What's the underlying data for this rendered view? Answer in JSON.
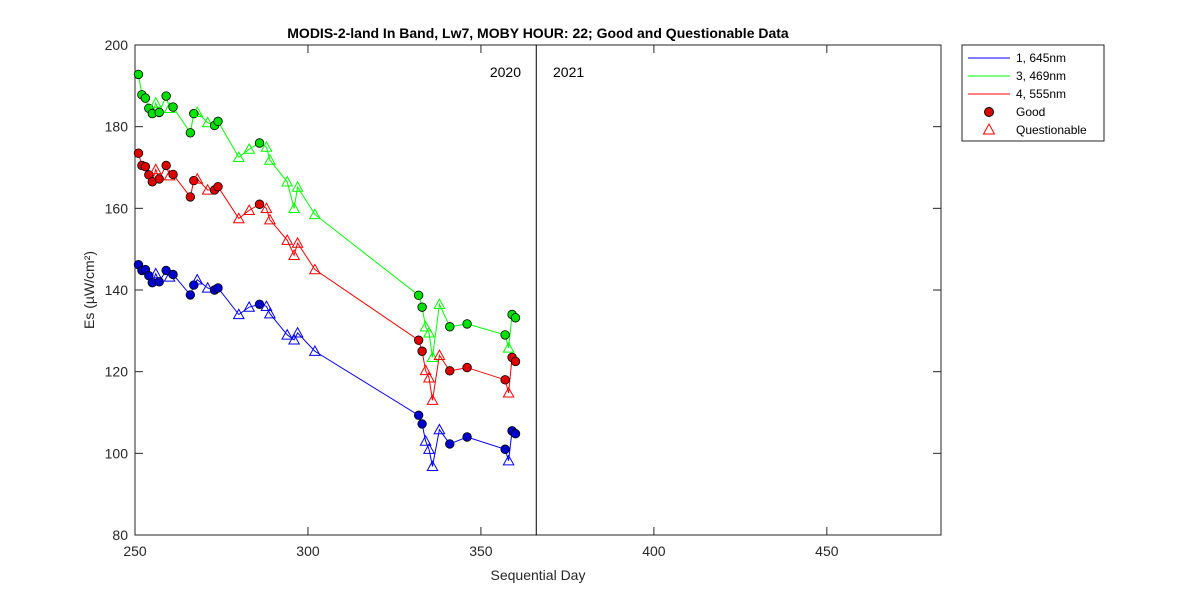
{
  "chart_data": {
    "type": "line",
    "title": "MODIS-2-land In Band,  Lw7, MOBY HOUR: 22;  Good and Questionable Data",
    "xlabel": "Sequential Day",
    "ylabel": "Es (µW/cm²)",
    "xlim": [
      250,
      483
    ],
    "ylim": [
      80,
      200
    ],
    "xticks": [
      250,
      300,
      350,
      400,
      450
    ],
    "yticks": [
      80,
      100,
      120,
      140,
      160,
      180,
      200
    ],
    "grid": false,
    "legend_position": "outside-top-right",
    "year_divider_x": 366,
    "year_labels": [
      "2020",
      "2021"
    ],
    "legend": {
      "series_labels": [
        "1, 645nm",
        "3, 469nm",
        "4, 555nm"
      ],
      "good_label": "Good",
      "questionable_label": "Questionable"
    },
    "colors": {
      "blue": "#0000ff",
      "green": "#00ff00",
      "red": "#ff0000",
      "blue_fill": "#0000cd",
      "green_fill": "#00e000",
      "red_fill": "#dd0000"
    },
    "series": [
      {
        "name": "1, 645nm",
        "color": "#0000ff",
        "points": [
          {
            "x": 251,
            "y": 146.2,
            "q": "good"
          },
          {
            "x": 252,
            "y": 144.8,
            "q": "good"
          },
          {
            "x": 253,
            "y": 145.0,
            "q": "good"
          },
          {
            "x": 254,
            "y": 143.5,
            "q": "good"
          },
          {
            "x": 255,
            "y": 141.8,
            "q": "good"
          },
          {
            "x": 256,
            "y": 144.0,
            "q": "quest"
          },
          {
            "x": 257,
            "y": 142.0,
            "q": "good"
          },
          {
            "x": 259,
            "y": 144.8,
            "q": "good"
          },
          {
            "x": 260,
            "y": 143.2,
            "q": "quest"
          },
          {
            "x": 261,
            "y": 143.8,
            "q": "good"
          },
          {
            "x": 266,
            "y": 138.8,
            "q": "good"
          },
          {
            "x": 267,
            "y": 141.2,
            "q": "good"
          },
          {
            "x": 268,
            "y": 142.5,
            "q": "quest"
          },
          {
            "x": 271,
            "y": 140.5,
            "q": "quest"
          },
          {
            "x": 273,
            "y": 140.0,
            "q": "good"
          },
          {
            "x": 274,
            "y": 140.5,
            "q": "good"
          },
          {
            "x": 280,
            "y": 134.0,
            "q": "quest"
          },
          {
            "x": 283,
            "y": 135.8,
            "q": "quest"
          },
          {
            "x": 286,
            "y": 136.5,
            "q": "good"
          },
          {
            "x": 288,
            "y": 136.0,
            "q": "quest"
          },
          {
            "x": 289,
            "y": 134.2,
            "q": "quest"
          },
          {
            "x": 294,
            "y": 129.0,
            "q": "quest"
          },
          {
            "x": 296,
            "y": 127.8,
            "q": "quest"
          },
          {
            "x": 297,
            "y": 129.5,
            "q": "quest"
          },
          {
            "x": 302,
            "y": 125.0,
            "q": "quest"
          },
          {
            "x": 332,
            "y": 109.3,
            "q": "good"
          },
          {
            "x": 333,
            "y": 107.2,
            "q": "good"
          },
          {
            "x": 334,
            "y": 103.0,
            "q": "quest"
          },
          {
            "x": 335,
            "y": 101.0,
            "q": "quest"
          },
          {
            "x": 336,
            "y": 96.8,
            "q": "quest"
          },
          {
            "x": 338,
            "y": 105.8,
            "q": "quest"
          },
          {
            "x": 341,
            "y": 102.3,
            "q": "good"
          },
          {
            "x": 346,
            "y": 104.0,
            "q": "good"
          },
          {
            "x": 357,
            "y": 101.0,
            "q": "good"
          },
          {
            "x": 358,
            "y": 98.2,
            "q": "quest"
          },
          {
            "x": 359,
            "y": 105.5,
            "q": "good"
          },
          {
            "x": 360,
            "y": 104.8,
            "q": "good"
          }
        ]
      },
      {
        "name": "3, 469nm",
        "color": "#00ff00",
        "points": [
          {
            "x": 251,
            "y": 192.8,
            "q": "good"
          },
          {
            "x": 252,
            "y": 187.8,
            "q": "good"
          },
          {
            "x": 253,
            "y": 187.0,
            "q": "good"
          },
          {
            "x": 254,
            "y": 184.5,
            "q": "good"
          },
          {
            "x": 255,
            "y": 183.2,
            "q": "good"
          },
          {
            "x": 256,
            "y": 185.8,
            "q": "quest"
          },
          {
            "x": 257,
            "y": 183.5,
            "q": "good"
          },
          {
            "x": 259,
            "y": 187.5,
            "q": "good"
          },
          {
            "x": 260,
            "y": 184.5,
            "q": "quest"
          },
          {
            "x": 261,
            "y": 184.8,
            "q": "good"
          },
          {
            "x": 266,
            "y": 178.5,
            "q": "good"
          },
          {
            "x": 267,
            "y": 183.2,
            "q": "good"
          },
          {
            "x": 268,
            "y": 183.5,
            "q": "quest"
          },
          {
            "x": 271,
            "y": 181.0,
            "q": "quest"
          },
          {
            "x": 273,
            "y": 180.3,
            "q": "good"
          },
          {
            "x": 274,
            "y": 181.3,
            "q": "good"
          },
          {
            "x": 280,
            "y": 172.5,
            "q": "quest"
          },
          {
            "x": 283,
            "y": 174.5,
            "q": "quest"
          },
          {
            "x": 286,
            "y": 176.0,
            "q": "good"
          },
          {
            "x": 288,
            "y": 175.0,
            "q": "quest"
          },
          {
            "x": 289,
            "y": 171.8,
            "q": "quest"
          },
          {
            "x": 294,
            "y": 166.5,
            "q": "quest"
          },
          {
            "x": 296,
            "y": 160.0,
            "q": "quest"
          },
          {
            "x": 297,
            "y": 165.2,
            "q": "quest"
          },
          {
            "x": 302,
            "y": 158.5,
            "q": "quest"
          },
          {
            "x": 332,
            "y": 138.7,
            "q": "good"
          },
          {
            "x": 333,
            "y": 135.8,
            "q": "good"
          },
          {
            "x": 334,
            "y": 131.0,
            "q": "quest"
          },
          {
            "x": 335,
            "y": 129.5,
            "q": "quest"
          },
          {
            "x": 336,
            "y": 123.5,
            "q": "quest"
          },
          {
            "x": 338,
            "y": 136.5,
            "q": "quest"
          },
          {
            "x": 341,
            "y": 131.0,
            "q": "good"
          },
          {
            "x": 346,
            "y": 131.7,
            "q": "good"
          },
          {
            "x": 357,
            "y": 129.0,
            "q": "good"
          },
          {
            "x": 358,
            "y": 125.8,
            "q": "quest"
          },
          {
            "x": 359,
            "y": 134.0,
            "q": "good"
          },
          {
            "x": 360,
            "y": 133.2,
            "q": "good"
          }
        ]
      },
      {
        "name": "4, 555nm",
        "color": "#ff0000",
        "points": [
          {
            "x": 251,
            "y": 173.5,
            "q": "good"
          },
          {
            "x": 252,
            "y": 170.5,
            "q": "good"
          },
          {
            "x": 253,
            "y": 170.2,
            "q": "good"
          },
          {
            "x": 254,
            "y": 168.2,
            "q": "good"
          },
          {
            "x": 255,
            "y": 166.5,
            "q": "good"
          },
          {
            "x": 256,
            "y": 169.5,
            "q": "quest"
          },
          {
            "x": 257,
            "y": 167.2,
            "q": "good"
          },
          {
            "x": 259,
            "y": 170.5,
            "q": "good"
          },
          {
            "x": 260,
            "y": 168.0,
            "q": "quest"
          },
          {
            "x": 261,
            "y": 168.3,
            "q": "good"
          },
          {
            "x": 266,
            "y": 162.8,
            "q": "good"
          },
          {
            "x": 267,
            "y": 166.8,
            "q": "good"
          },
          {
            "x": 268,
            "y": 167.2,
            "q": "quest"
          },
          {
            "x": 271,
            "y": 164.5,
            "q": "quest"
          },
          {
            "x": 273,
            "y": 164.5,
            "q": "good"
          },
          {
            "x": 274,
            "y": 165.3,
            "q": "good"
          },
          {
            "x": 280,
            "y": 157.5,
            "q": "quest"
          },
          {
            "x": 283,
            "y": 159.5,
            "q": "quest"
          },
          {
            "x": 286,
            "y": 161.0,
            "q": "good"
          },
          {
            "x": 288,
            "y": 160.0,
            "q": "quest"
          },
          {
            "x": 289,
            "y": 157.2,
            "q": "quest"
          },
          {
            "x": 294,
            "y": 152.2,
            "q": "quest"
          },
          {
            "x": 296,
            "y": 148.5,
            "q": "quest"
          },
          {
            "x": 297,
            "y": 151.5,
            "q": "quest"
          },
          {
            "x": 302,
            "y": 145.0,
            "q": "quest"
          },
          {
            "x": 332,
            "y": 127.7,
            "q": "good"
          },
          {
            "x": 333,
            "y": 125.0,
            "q": "good"
          },
          {
            "x": 334,
            "y": 120.3,
            "q": "quest"
          },
          {
            "x": 335,
            "y": 118.5,
            "q": "quest"
          },
          {
            "x": 336,
            "y": 113.0,
            "q": "quest"
          },
          {
            "x": 338,
            "y": 124.0,
            "q": "quest"
          },
          {
            "x": 341,
            "y": 120.2,
            "q": "good"
          },
          {
            "x": 346,
            "y": 121.0,
            "q": "good"
          },
          {
            "x": 357,
            "y": 118.0,
            "q": "good"
          },
          {
            "x": 358,
            "y": 114.8,
            "q": "quest"
          },
          {
            "x": 359,
            "y": 123.5,
            "q": "good"
          },
          {
            "x": 360,
            "y": 122.5,
            "q": "good"
          }
        ]
      }
    ]
  }
}
